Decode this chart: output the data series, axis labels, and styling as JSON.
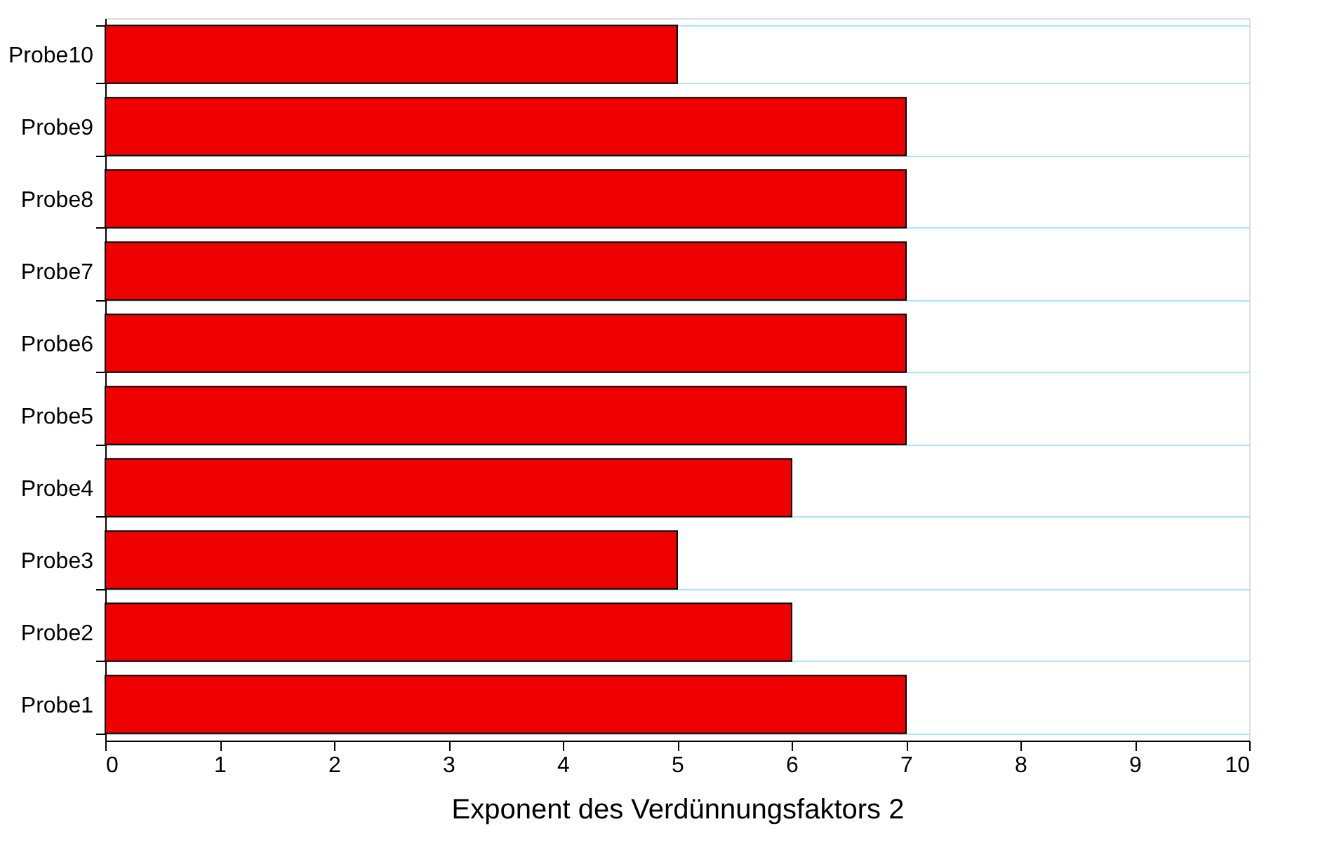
{
  "chart_data": {
    "type": "bar",
    "orientation": "horizontal",
    "xlabel": "Exponent des Verdünnungsfaktors 2",
    "categories": [
      "Probe10",
      "Probe9",
      "Probe8",
      "Probe7",
      "Probe6",
      "Probe5",
      "Probe4",
      "Probe3",
      "Probe2",
      "Probe1"
    ],
    "values": [
      5,
      7,
      7,
      7,
      7,
      7,
      6,
      5,
      6,
      7
    ],
    "color": "#ee0000",
    "xlim": [
      0,
      10
    ],
    "xticks": [
      0,
      1,
      2,
      3,
      4,
      5,
      6,
      7,
      8,
      9,
      10
    ],
    "grid": "y"
  }
}
